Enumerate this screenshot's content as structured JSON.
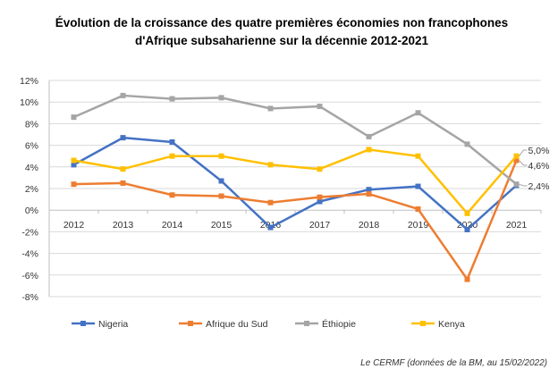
{
  "chart_data": {
    "type": "line",
    "title_lines": [
      "Évolution de la croissance des quatre premières économies non francophones",
      "d'Afrique subsaharienne sur la décennie 2012-2021"
    ],
    "xlabel": "",
    "ylabel": "",
    "categories": [
      "2012",
      "2013",
      "2014",
      "2015",
      "2016",
      "2017",
      "2018",
      "2019",
      "2020",
      "2021"
    ],
    "ylim": [
      -8,
      12
    ],
    "ytick_labels": [
      "12%",
      "10%",
      "8%",
      "6%",
      "4%",
      "2%",
      "0%",
      "-2%",
      "-4%",
      "-6%",
      "-8%"
    ],
    "grid": true,
    "legend_position": "bottom",
    "series": [
      {
        "name": "Nigeria",
        "color": "#4472C4",
        "values": [
          4.2,
          6.7,
          6.3,
          2.7,
          -1.6,
          0.8,
          1.9,
          2.2,
          -1.8,
          2.3
        ]
      },
      {
        "name": "Afrique du Sud",
        "color": "#ED7D31",
        "values": [
          2.4,
          2.5,
          1.4,
          1.3,
          0.7,
          1.2,
          1.5,
          0.1,
          -6.4,
          4.6
        ]
      },
      {
        "name": "Éthiopie",
        "color": "#A5A5A5",
        "values": [
          8.6,
          10.6,
          10.3,
          10.4,
          9.4,
          9.6,
          6.8,
          9.0,
          6.1,
          2.4
        ]
      },
      {
        "name": "Kenya",
        "color": "#FFC000",
        "values": [
          4.6,
          3.8,
          5.0,
          5.0,
          4.2,
          3.8,
          5.6,
          5.0,
          -0.3,
          5.0
        ]
      }
    ],
    "data_labels": [
      {
        "series": "Kenya",
        "text": "5,0%"
      },
      {
        "series": "Afrique du Sud",
        "text": "4,6%"
      },
      {
        "series": "Éthiopie",
        "text": "2,4%"
      }
    ],
    "source": "Le CERMF (données de la BM, au 15/02/2022)"
  }
}
